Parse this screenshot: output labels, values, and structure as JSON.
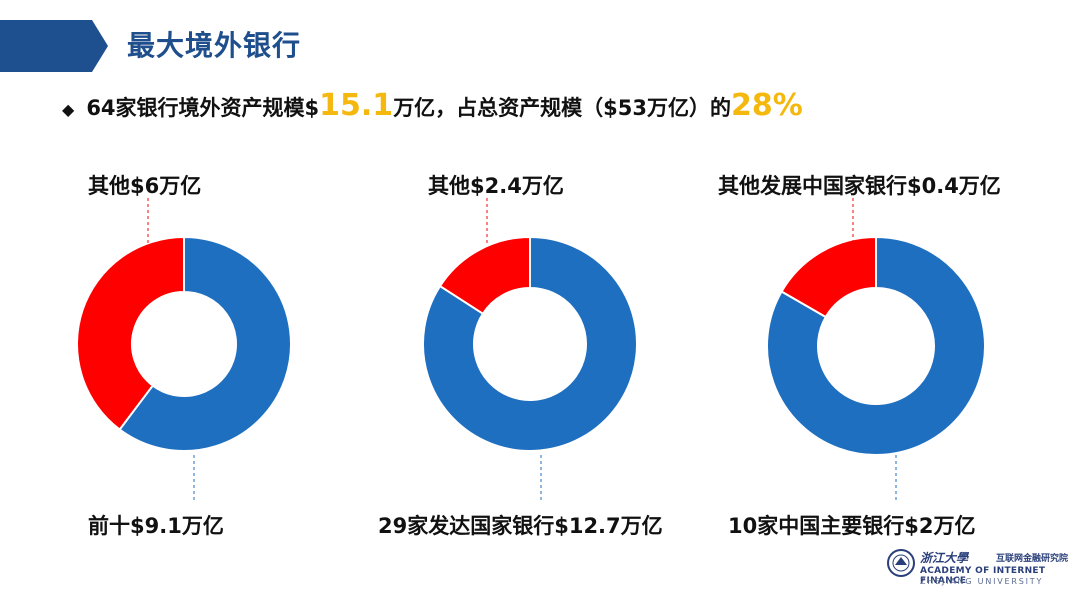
{
  "slide": {
    "title": "最大境外银行",
    "subtitle": {
      "bullet": "◆",
      "part1": "64家银行境外资产规模$",
      "highlight1": "15.1",
      "part2": "万亿，占总资产规模（$53万亿）的",
      "highlight2": "28%"
    }
  },
  "colors": {
    "blue": "#1f6fc0",
    "red": "#ff0000",
    "highlight": "#f5b80f",
    "banner": "#1e4f8f"
  },
  "chart_data": [
    {
      "type": "pie",
      "donut": true,
      "labels": [
        "前十$9.1万亿",
        "其他$6万亿"
      ],
      "values": [
        9.1,
        6.0
      ],
      "colors": [
        "#1f6fc0",
        "#ff0000"
      ]
    },
    {
      "type": "pie",
      "donut": true,
      "labels": [
        "29家发达国家银行$12.7万亿",
        "其他$2.4万亿"
      ],
      "values": [
        12.7,
        2.4
      ],
      "colors": [
        "#1f6fc0",
        "#ff0000"
      ]
    },
    {
      "type": "pie",
      "donut": true,
      "labels": [
        "10家中国主要银行$2万亿",
        "其他发展中国家银行$0.4万亿"
      ],
      "values": [
        2.0,
        0.4
      ],
      "colors": [
        "#1f6fc0",
        "#ff0000"
      ]
    }
  ],
  "logo": {
    "script": "浙江大學",
    "cn": "互联网金融研究院",
    "en1": "ACADEMY OF INTERNET FINANCE",
    "en2": "ZHEJIANG UNIVERSITY"
  }
}
